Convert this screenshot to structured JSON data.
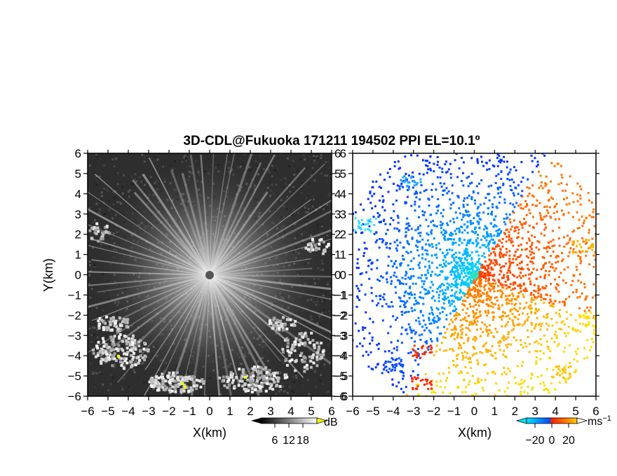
{
  "chart_data": [
    {
      "type": "heatmap",
      "title": "3D-CDL@Fukuoka 171211 194502 PPI EL=10.1º",
      "xlabel": "X(km)",
      "ylabel": "Y(km)",
      "xlim": [
        -6,
        6
      ],
      "ylim": [
        -6,
        6
      ],
      "x_ticks": [
        "-6",
        "-5",
        "-4",
        "-3",
        "-2",
        "-1",
        "0",
        "1",
        "2",
        "3",
        "4",
        "5",
        "6"
      ],
      "y_ticks": [
        "6",
        "5",
        "4",
        "3",
        "2",
        "1",
        "0",
        "-1",
        "-2",
        "-3",
        "-4",
        "-5",
        "-6"
      ],
      "colorbar": {
        "unit": "dB",
        "ticks": [
          "6",
          "12",
          "18"
        ],
        "range": [
          0,
          24
        ],
        "colors": [
          "#000000",
          "#ffffff"
        ]
      },
      "grid": false
    },
    {
      "type": "heatmap",
      "xlabel": "X(km)",
      "xlim": [
        -6,
        6
      ],
      "ylim": [
        -6,
        6
      ],
      "x_ticks": [
        "-6",
        "-5",
        "-4",
        "-3",
        "-2",
        "-1",
        "0",
        "1",
        "2",
        "3",
        "4",
        "5",
        "6"
      ],
      "y_ticks": [
        "6",
        "5",
        "4",
        "3",
        "2",
        "1",
        "0",
        "-1",
        "-2",
        "-3",
        "-4",
        "-5",
        "-6"
      ],
      "colorbar": {
        "unit": "ms",
        "unit_exponent": "−1",
        "ticks": [
          "−20",
          "0",
          "20"
        ],
        "range": [
          -30,
          30
        ],
        "colors": [
          "#00e5ff",
          "#0050ff",
          "#ff2000",
          "#ff7000",
          "#ffd000"
        ]
      },
      "grid": false
    }
  ]
}
